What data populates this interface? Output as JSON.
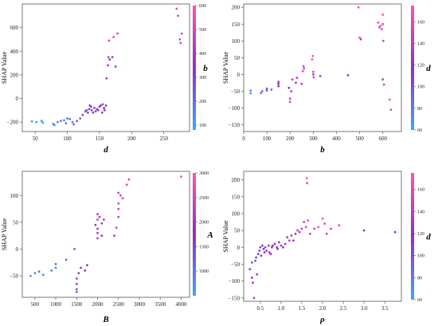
{
  "chart_data": [
    {
      "type": "scatter",
      "xlabel": "d",
      "ylabel": "SHAP Value",
      "colorbar_label": "b",
      "xlim": [
        30,
        290
      ],
      "ylim": [
        -280,
        800
      ],
      "xticks": [
        "50",
        "100",
        "150",
        "200",
        "250"
      ],
      "yticks": [
        "−200",
        "0",
        "200",
        "400",
        "600"
      ],
      "colorbar_range": [
        80,
        600
      ],
      "colorbar_ticks": [
        "100",
        "200",
        "300",
        "400",
        "500",
        "600"
      ],
      "colors": [
        "#3fa4ff",
        "#8f2fc4",
        "#ff52b0"
      ],
      "points": [
        [
          45,
          -195,
          100
        ],
        [
          52,
          -200,
          110
        ],
        [
          60,
          -190,
          105
        ],
        [
          62,
          -205,
          120
        ],
        [
          78,
          -215,
          130
        ],
        [
          80,
          -225,
          140
        ],
        [
          85,
          -200,
          150
        ],
        [
          90,
          -190,
          150
        ],
        [
          95,
          -185,
          160
        ],
        [
          98,
          -210,
          170
        ],
        [
          100,
          -170,
          180
        ],
        [
          104,
          -175,
          200
        ],
        [
          108,
          -200,
          180
        ],
        [
          110,
          -220,
          200
        ],
        [
          115,
          -190,
          220
        ],
        [
          120,
          -170,
          220
        ],
        [
          124,
          -140,
          240
        ],
        [
          128,
          -110,
          250
        ],
        [
          130,
          -100,
          260
        ],
        [
          132,
          -120,
          300
        ],
        [
          134,
          -90,
          280
        ],
        [
          135,
          -60,
          300
        ],
        [
          137,
          -70,
          300
        ],
        [
          138,
          -100,
          300
        ],
        [
          140,
          -120,
          300
        ],
        [
          142,
          -80,
          300
        ],
        [
          144,
          -110,
          320
        ],
        [
          146,
          -90,
          300
        ],
        [
          148,
          -100,
          300
        ],
        [
          150,
          -70,
          300
        ],
        [
          152,
          -60,
          320
        ],
        [
          154,
          -120,
          300
        ],
        [
          155,
          -50,
          300
        ],
        [
          157,
          -80,
          320
        ],
        [
          158,
          -100,
          350
        ],
        [
          160,
          -60,
          350
        ],
        [
          161,
          170,
          400
        ],
        [
          163,
          280,
          400
        ],
        [
          164,
          350,
          500
        ],
        [
          165,
          490,
          500
        ],
        [
          166,
          330,
          300
        ],
        [
          170,
          350,
          400
        ],
        [
          172,
          520,
          500
        ],
        [
          175,
          270,
          300
        ],
        [
          178,
          550,
          500
        ],
        [
          270,
          760,
          550
        ],
        [
          272,
          700,
          500
        ],
        [
          275,
          500,
          500
        ],
        [
          276,
          470,
          480
        ],
        [
          278,
          550,
          520
        ]
      ]
    },
    {
      "type": "scatter",
      "xlabel": "b",
      "ylabel": "SHAP Value",
      "colorbar_label": "d",
      "xlim": [
        0,
        680
      ],
      "ylim": [
        -170,
        210
      ],
      "xticks": [
        "0",
        "100",
        "200",
        "300",
        "400",
        "500",
        "600"
      ],
      "yticks": [
        "−150",
        "−100",
        "−50",
        "0",
        "50",
        "100",
        "150",
        "200"
      ],
      "colorbar_range": [
        60,
        175
      ],
      "colorbar_ticks": [
        "60",
        "80",
        "100",
        "120",
        "140",
        "160"
      ],
      "colors": [
        "#3fa4ff",
        "#8f2fc4",
        "#ff52b0"
      ],
      "points": [
        [
          30,
          -48,
          75
        ],
        [
          30,
          -56,
          70
        ],
        [
          75,
          -55,
          80
        ],
        [
          80,
          -50,
          80
        ],
        [
          100,
          -48,
          90
        ],
        [
          100,
          -42,
          100
        ],
        [
          120,
          -45,
          90
        ],
        [
          150,
          -35,
          110
        ],
        [
          150,
          -28,
          120
        ],
        [
          150,
          -22,
          130
        ],
        [
          195,
          -40,
          120
        ],
        [
          200,
          -82,
          150
        ],
        [
          200,
          -72,
          150
        ],
        [
          205,
          -50,
          140
        ],
        [
          210,
          -15,
          150
        ],
        [
          225,
          -25,
          130
        ],
        [
          230,
          -10,
          140
        ],
        [
          250,
          -28,
          140
        ],
        [
          255,
          10,
          160
        ],
        [
          258,
          25,
          160
        ],
        [
          260,
          18,
          150
        ],
        [
          295,
          45,
          170
        ],
        [
          298,
          55,
          170
        ],
        [
          300,
          8,
          150
        ],
        [
          300,
          0,
          140
        ],
        [
          302,
          -8,
          160
        ],
        [
          330,
          -5,
          100
        ],
        [
          450,
          -2,
          110
        ],
        [
          495,
          200,
          170
        ],
        [
          500,
          110,
          170
        ],
        [
          505,
          105,
          140
        ],
        [
          580,
          155,
          170
        ],
        [
          585,
          140,
          160
        ],
        [
          590,
          145,
          170
        ],
        [
          595,
          135,
          150
        ],
        [
          600,
          178,
          170
        ],
        [
          600,
          150,
          160
        ],
        [
          602,
          100,
          150
        ],
        [
          605,
          -30,
          160
        ],
        [
          630,
          -75,
          170
        ],
        [
          635,
          -105,
          160
        ],
        [
          600,
          -15,
          140
        ]
      ]
    },
    {
      "type": "scatter",
      "xlabel": "B",
      "ylabel": "SHAP Value",
      "colorbar_label": "A",
      "xlim": [
        200,
        4200
      ],
      "ylim": [
        -90,
        145
      ],
      "xticks": [
        "500",
        "1000",
        "1500",
        "2000",
        "2500",
        "3000",
        "3500",
        "4000"
      ],
      "yticks": [
        "−50",
        "0",
        "50",
        "100"
      ],
      "colorbar_range": [
        500,
        3000
      ],
      "colorbar_ticks": [
        "1000",
        "1500",
        "2000",
        "2500",
        "3000"
      ],
      "colors": [
        "#3fa4ff",
        "#8f2fc4",
        "#ff52b0"
      ],
      "points": [
        [
          400,
          -50,
          700
        ],
        [
          500,
          -45,
          800
        ],
        [
          600,
          -42,
          900
        ],
        [
          700,
          -48,
          800
        ],
        [
          900,
          -40,
          900
        ],
        [
          1000,
          -35,
          900
        ],
        [
          1000,
          -28,
          1000
        ],
        [
          1500,
          -80,
          1300
        ],
        [
          1500,
          -75,
          1400
        ],
        [
          1500,
          -65,
          1500
        ],
        [
          1500,
          -55,
          1500
        ],
        [
          1550,
          -45,
          1500
        ],
        [
          1600,
          -35,
          1600
        ],
        [
          1700,
          -40,
          1600
        ],
        [
          1750,
          -30,
          1700
        ],
        [
          1950,
          45,
          2000
        ],
        [
          2000,
          30,
          2000
        ],
        [
          2000,
          20,
          2100
        ],
        [
          2000,
          55,
          2200
        ],
        [
          2050,
          60,
          2100
        ],
        [
          2000,
          65,
          2200
        ],
        [
          2000,
          38,
          2100
        ],
        [
          2100,
          25,
          2000
        ],
        [
          2100,
          48,
          2200
        ],
        [
          2150,
          55,
          2100
        ],
        [
          2400,
          25,
          2300
        ],
        [
          2450,
          40,
          2400
        ],
        [
          2500,
          60,
          2400
        ],
        [
          2500,
          75,
          2500
        ],
        [
          2500,
          85,
          2500
        ],
        [
          2500,
          105,
          2500
        ],
        [
          2550,
          100,
          2400
        ],
        [
          2600,
          95,
          2600
        ],
        [
          2700,
          120,
          2700
        ],
        [
          2750,
          130,
          2600
        ],
        [
          4000,
          135,
          3000
        ],
        [
          1250,
          -20,
          1200
        ],
        [
          1450,
          0,
          1300
        ]
      ]
    },
    {
      "type": "scatter",
      "xlabel": "ρ",
      "ylabel": "SHAP Value",
      "colorbar_label": "d",
      "xlim": [
        0.1,
        3.9
      ],
      "ylim": [
        -160,
        225
      ],
      "xticks": [
        "0.5",
        "1.0",
        "1.5",
        "2.0",
        "2.5",
        "3.0",
        "3.5"
      ],
      "yticks": [
        "−150",
        "−100",
        "−50",
        "0",
        "50",
        "100",
        "150",
        "200"
      ],
      "colorbar_range": [
        60,
        175
      ],
      "colorbar_ticks": [
        "60",
        "80",
        "100",
        "120",
        "140",
        "160"
      ],
      "colors": [
        "#3fa4ff",
        "#8f2fc4",
        "#ff52b0"
      ],
      "points": [
        [
          0.25,
          -65,
          110
        ],
        [
          0.3,
          -45,
          100
        ],
        [
          0.3,
          -90,
          120
        ],
        [
          0.32,
          -105,
          130
        ],
        [
          0.35,
          -150,
          140
        ],
        [
          0.38,
          -40,
          100
        ],
        [
          0.4,
          -30,
          110
        ],
        [
          0.42,
          -80,
          130
        ],
        [
          0.45,
          -20,
          120
        ],
        [
          0.48,
          -10,
          110
        ],
        [
          0.5,
          0,
          100
        ],
        [
          0.52,
          -25,
          120
        ],
        [
          0.55,
          5,
          110
        ],
        [
          0.58,
          -5,
          120
        ],
        [
          0.6,
          -15,
          120
        ],
        [
          0.62,
          0,
          100
        ],
        [
          0.65,
          -10,
          120
        ],
        [
          0.7,
          5,
          110
        ],
        [
          0.72,
          -15,
          130
        ],
        [
          0.75,
          -20,
          120
        ],
        [
          0.78,
          0,
          120
        ],
        [
          0.8,
          5,
          110
        ],
        [
          0.85,
          10,
          120
        ],
        [
          0.9,
          0,
          130
        ],
        [
          0.92,
          -5,
          110
        ],
        [
          0.95,
          15,
          120
        ],
        [
          1.0,
          5,
          130
        ],
        [
          1.05,
          0,
          120
        ],
        [
          1.1,
          10,
          130
        ],
        [
          1.15,
          30,
          130
        ],
        [
          1.2,
          20,
          140
        ],
        [
          1.25,
          35,
          140
        ],
        [
          1.3,
          20,
          130
        ],
        [
          1.35,
          40,
          130
        ],
        [
          1.4,
          50,
          140
        ],
        [
          1.45,
          45,
          150
        ],
        [
          1.5,
          55,
          150
        ],
        [
          1.55,
          75,
          150
        ],
        [
          1.6,
          60,
          160
        ],
        [
          1.62,
          205,
          170
        ],
        [
          1.63,
          190,
          160
        ],
        [
          1.65,
          80,
          170
        ],
        [
          1.7,
          40,
          150
        ],
        [
          1.8,
          55,
          150
        ],
        [
          1.9,
          60,
          160
        ],
        [
          2.0,
          85,
          170
        ],
        [
          2.05,
          70,
          160
        ],
        [
          2.1,
          40,
          150
        ],
        [
          2.2,
          55,
          150
        ],
        [
          2.4,
          65,
          160
        ],
        [
          3.0,
          50,
          120
        ],
        [
          3.75,
          45,
          110
        ]
      ]
    }
  ]
}
